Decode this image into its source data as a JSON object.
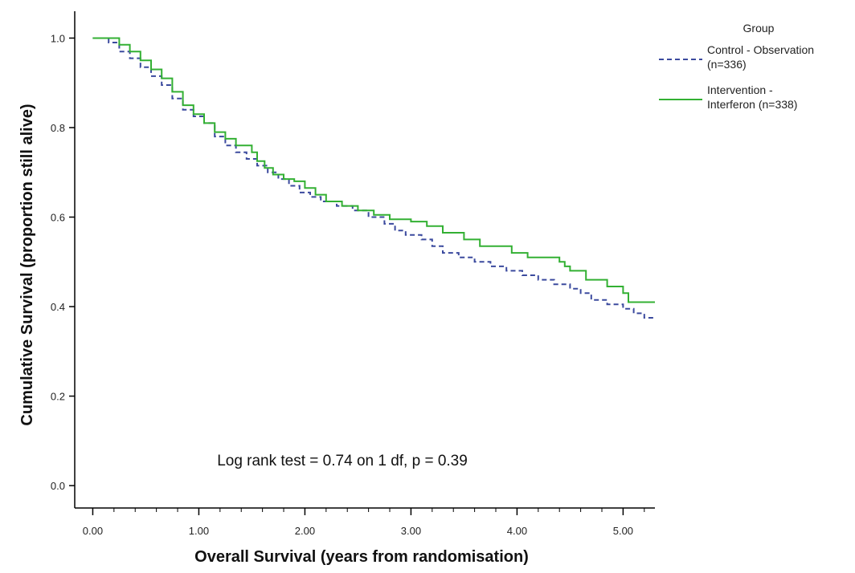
{
  "chart_data": {
    "type": "line",
    "step": true,
    "xlabel": "Overall Survival (years from randomisation)",
    "ylabel": "Cumulative Survival (proportion still alive)",
    "xlim": [
      -0.17,
      5.3
    ],
    "ylim": [
      -0.05,
      1.06
    ],
    "x_ticks": [
      "0.00",
      "1.00",
      "2.00",
      "3.00",
      "4.00",
      "5.00"
    ],
    "x_tick_values": [
      0,
      1,
      2,
      3,
      4,
      5
    ],
    "y_ticks": [
      "0.0",
      "0.2",
      "0.4",
      "0.6",
      "0.8",
      "1.0"
    ],
    "y_tick_values": [
      0,
      0.2,
      0.4,
      0.6,
      0.8,
      1.0
    ],
    "grid": false,
    "legend": {
      "title": "Group",
      "position": "top-right"
    },
    "annotation": "Log rank test = 0.74 on 1 df, p = 0.39",
    "series": [
      {
        "name": "Control - Observation (n=336)",
        "name_lines": [
          "Control - Observation",
          "(n=336)"
        ],
        "color": "#3b4a9e",
        "dash": "6,4",
        "points": [
          [
            0,
            1.0
          ],
          [
            0.1,
            1.0
          ],
          [
            0.15,
            0.99
          ],
          [
            0.25,
            0.97
          ],
          [
            0.35,
            0.955
          ],
          [
            0.45,
            0.935
          ],
          [
            0.55,
            0.915
          ],
          [
            0.65,
            0.895
          ],
          [
            0.75,
            0.865
          ],
          [
            0.85,
            0.84
          ],
          [
            0.95,
            0.825
          ],
          [
            1.05,
            0.81
          ],
          [
            1.15,
            0.78
          ],
          [
            1.25,
            0.76
          ],
          [
            1.35,
            0.745
          ],
          [
            1.45,
            0.73
          ],
          [
            1.55,
            0.715
          ],
          [
            1.65,
            0.7
          ],
          [
            1.75,
            0.685
          ],
          [
            1.85,
            0.67
          ],
          [
            1.95,
            0.655
          ],
          [
            2.05,
            0.645
          ],
          [
            2.15,
            0.635
          ],
          [
            2.3,
            0.625
          ],
          [
            2.45,
            0.615
          ],
          [
            2.6,
            0.6
          ],
          [
            2.75,
            0.585
          ],
          [
            2.85,
            0.57
          ],
          [
            2.95,
            0.56
          ],
          [
            3.1,
            0.55
          ],
          [
            3.2,
            0.535
          ],
          [
            3.3,
            0.52
          ],
          [
            3.45,
            0.51
          ],
          [
            3.6,
            0.5
          ],
          [
            3.75,
            0.49
          ],
          [
            3.9,
            0.48
          ],
          [
            4.05,
            0.47
          ],
          [
            4.2,
            0.46
          ],
          [
            4.35,
            0.45
          ],
          [
            4.5,
            0.44
          ],
          [
            4.6,
            0.43
          ],
          [
            4.7,
            0.415
          ],
          [
            4.85,
            0.405
          ],
          [
            5.0,
            0.395
          ],
          [
            5.1,
            0.385
          ],
          [
            5.2,
            0.375
          ],
          [
            5.3,
            0.375
          ]
        ]
      },
      {
        "name": "Intervention - Interferon (n=338)",
        "name_lines": [
          "Intervention -",
          "Interferon (n=338)"
        ],
        "color": "#33b033",
        "dash": "",
        "points": [
          [
            0,
            1.0
          ],
          [
            0.15,
            1.0
          ],
          [
            0.25,
            0.985
          ],
          [
            0.35,
            0.97
          ],
          [
            0.45,
            0.95
          ],
          [
            0.55,
            0.93
          ],
          [
            0.65,
            0.91
          ],
          [
            0.75,
            0.88
          ],
          [
            0.85,
            0.85
          ],
          [
            0.95,
            0.83
          ],
          [
            1.05,
            0.81
          ],
          [
            1.15,
            0.79
          ],
          [
            1.25,
            0.775
          ],
          [
            1.35,
            0.76
          ],
          [
            1.5,
            0.745
          ],
          [
            1.55,
            0.725
          ],
          [
            1.62,
            0.71
          ],
          [
            1.7,
            0.695
          ],
          [
            1.8,
            0.685
          ],
          [
            1.9,
            0.68
          ],
          [
            2.0,
            0.665
          ],
          [
            2.1,
            0.65
          ],
          [
            2.2,
            0.635
          ],
          [
            2.35,
            0.625
          ],
          [
            2.5,
            0.615
          ],
          [
            2.65,
            0.605
          ],
          [
            2.8,
            0.595
          ],
          [
            3.0,
            0.59
          ],
          [
            3.15,
            0.58
          ],
          [
            3.3,
            0.565
          ],
          [
            3.5,
            0.55
          ],
          [
            3.65,
            0.535
          ],
          [
            3.95,
            0.52
          ],
          [
            4.1,
            0.51
          ],
          [
            4.4,
            0.5
          ],
          [
            4.45,
            0.49
          ],
          [
            4.5,
            0.48
          ],
          [
            4.65,
            0.46
          ],
          [
            4.85,
            0.445
          ],
          [
            5.0,
            0.43
          ],
          [
            5.05,
            0.41
          ],
          [
            5.3,
            0.41
          ]
        ]
      }
    ]
  }
}
